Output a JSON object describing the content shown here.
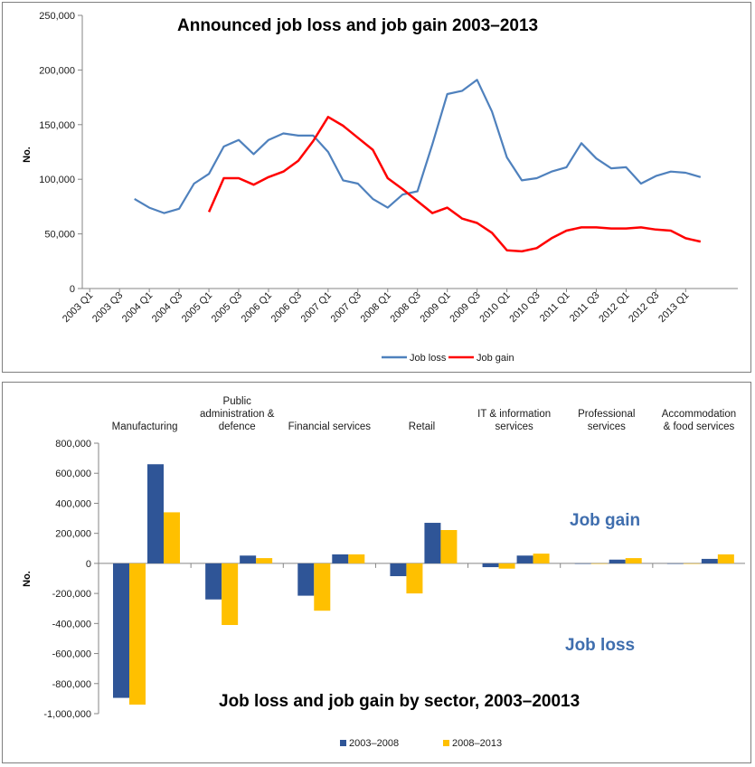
{
  "chart_data": [
    {
      "type": "line",
      "title": "Announced job loss and job gain 2003–2013",
      "ylabel": "No.",
      "ylim": [
        0,
        250000
      ],
      "yticks": [
        "250,000",
        "200,000",
        "150,000",
        "100,000",
        "50,000",
        "0"
      ],
      "ytick_values": [
        250000,
        200000,
        150000,
        100000,
        50000,
        0
      ],
      "x_tick_labels": [
        "2003 Q1",
        "2003 Q3",
        "2004 Q1",
        "2004  Q3",
        "2005  Q1",
        "2005 Q3",
        "2006 Q1",
        "2006 Q3",
        "2007 Q1",
        "2007 Q3",
        "2008 Q1",
        "2008 Q3",
        "2009 Q1",
        "2009 Q3",
        "2010 Q1",
        "2010 Q3",
        "2011 Q1",
        "2011 Q3",
        "2012 Q1",
        "2012 Q3",
        "2013 Q1"
      ],
      "x_count": 44,
      "series": [
        {
          "name": "Job loss",
          "color": "#4f81bd",
          "values": [
            null,
            null,
            null,
            82000,
            74000,
            69000,
            73000,
            96000,
            105000,
            130000,
            136000,
            123000,
            136000,
            142000,
            140000,
            140000,
            125000,
            99000,
            96000,
            82000,
            74000,
            86000,
            89000,
            132000,
            178000,
            181000,
            191000,
            162000,
            120000,
            99000,
            101000,
            107000,
            111000,
            133000,
            119000,
            110000,
            111000,
            96000,
            103000,
            107000,
            106000,
            102000
          ]
        },
        {
          "name": "Job gain",
          "color": "#ff0000",
          "values": [
            null,
            null,
            null,
            null,
            null,
            null,
            null,
            null,
            70000,
            101000,
            101000,
            95000,
            102000,
            107000,
            117000,
            135000,
            157000,
            149000,
            138000,
            127000,
            101000,
            91000,
            80000,
            69000,
            74000,
            64000,
            60000,
            51000,
            35000,
            34000,
            37000,
            46000,
            53000,
            56000,
            56000,
            55000,
            55000,
            56000,
            54000,
            53000,
            46000,
            43000
          ]
        }
      ],
      "legend_position": "bottom"
    },
    {
      "type": "bar",
      "title": "Job loss and job gain by sector, 2003–20013",
      "ylabel": "No.",
      "ylim": [
        -1000000,
        800000
      ],
      "yticks": [
        "800,000",
        "600,000",
        "400,000",
        "200,000",
        "0",
        "-200,000",
        "-400,000",
        "-600,000",
        "-800,000",
        "-1,000,000"
      ],
      "ytick_values": [
        800000,
        600000,
        400000,
        200000,
        0,
        -200000,
        -400000,
        -600000,
        -800000,
        -1000000
      ],
      "categories": [
        [
          "Manufacturing"
        ],
        [
          "Public",
          "administration &",
          "defence"
        ],
        [
          "Financial services"
        ],
        [
          "Retail"
        ],
        [
          "IT & information",
          "services"
        ],
        [
          "Professional",
          "services"
        ],
        [
          "Accommodation",
          "& food services"
        ]
      ],
      "series": [
        {
          "name": "2003–2008",
          "color": "#2f5597",
          "loss": [
            -895000,
            -240000,
            -215000,
            -85000,
            -25000,
            -3000,
            -3000
          ],
          "gain": [
            660000,
            52000,
            60000,
            270000,
            52000,
            25000,
            30000
          ]
        },
        {
          "name": "2008–2013",
          "color": "#ffc000",
          "loss": [
            -940000,
            -410000,
            -315000,
            -200000,
            -35000,
            -3000,
            -3000
          ],
          "gain": [
            340000,
            35000,
            60000,
            222000,
            65000,
            35000,
            60000
          ]
        }
      ],
      "annotations": {
        "gain": "Job gain",
        "loss": "Job loss"
      },
      "legend_position": "bottom"
    }
  ]
}
